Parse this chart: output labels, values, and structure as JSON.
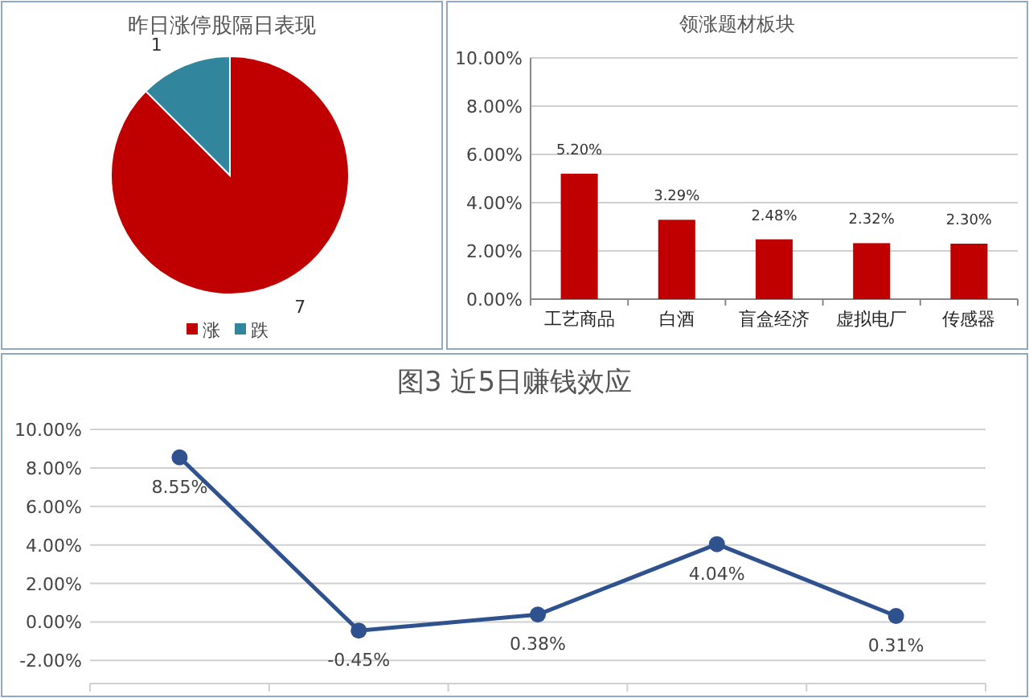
{
  "chart_data": [
    {
      "type": "pie",
      "title": "昨日涨停股隔日表现",
      "categories": [
        "涨",
        "跌"
      ],
      "values": [
        7,
        1
      ],
      "colors": [
        "#c00000",
        "#31859c"
      ],
      "data_labels": true,
      "legend": "bottom"
    },
    {
      "type": "bar",
      "title": "领涨题材板块",
      "categories": [
        "工艺商品",
        "白酒",
        "盲盒经济",
        "虚拟电厂",
        "传感器"
      ],
      "values": [
        5.2,
        3.29,
        2.48,
        2.32,
        2.3
      ],
      "color": "#c00000",
      "value_labels": [
        "5.20%",
        "3.29%",
        "2.48%",
        "2.32%",
        "2.30%"
      ],
      "ylim": [
        0,
        10
      ],
      "yticks": [
        {
          "value": 0,
          "label": "0.00%"
        },
        {
          "value": 2,
          "label": "2.00%"
        },
        {
          "value": 4,
          "label": "4.00%"
        },
        {
          "value": 6,
          "label": "6.00%"
        },
        {
          "value": 8,
          "label": "8.00%"
        },
        {
          "value": 10,
          "label": "10.00%"
        }
      ],
      "grid": "y"
    },
    {
      "type": "line",
      "title": "图3 近5日赚钱效应",
      "categories": [
        null,
        null,
        null,
        null,
        null
      ],
      "values": [
        8.55,
        -0.45,
        0.38,
        4.04,
        0.31
      ],
      "color": "#2f528f",
      "value_labels": [
        "8.55%",
        "-0.45%",
        "0.38%",
        "4.04%",
        "0.31%"
      ],
      "marker": "circle",
      "ylim": [
        -3.2,
        10
      ],
      "yticks": [
        {
          "value": -2,
          "label": "-2.00%"
        },
        {
          "value": 0,
          "label": "0.00%"
        },
        {
          "value": 2,
          "label": "2.00%"
        },
        {
          "value": 4,
          "label": "4.00%"
        },
        {
          "value": 6,
          "label": "6.00%"
        },
        {
          "value": 8,
          "label": "8.00%"
        },
        {
          "value": 10,
          "label": "10.00%"
        }
      ],
      "grid": "y"
    }
  ]
}
